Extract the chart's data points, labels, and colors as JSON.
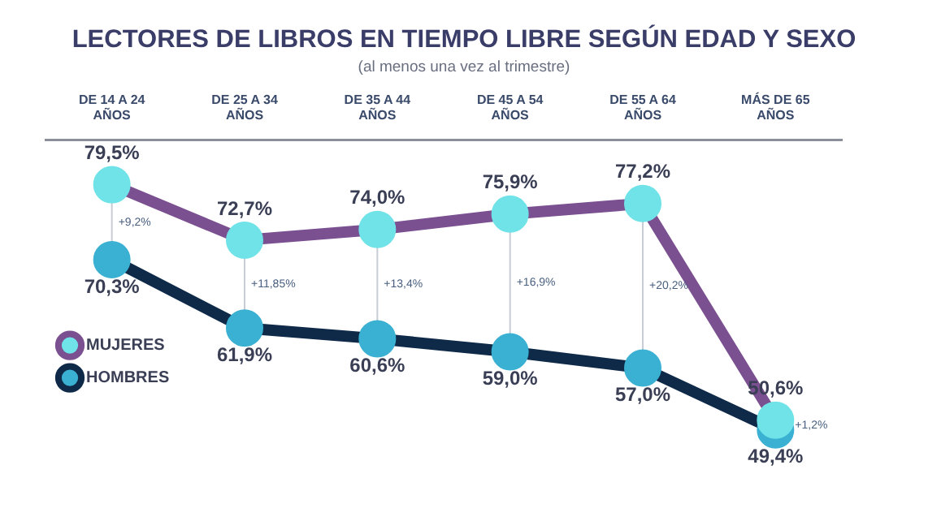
{
  "chart_data": {
    "type": "line",
    "title": "LECTORES DE LIBROS EN TIEMPO LIBRE SEGÚN EDAD Y SEXO",
    "subtitle": "(al menos una vez al trimestre)",
    "categories": [
      "DE 14 A 24 AÑOS",
      "DE 25 A 34 AÑOS",
      "DE 35 A 44 AÑOS",
      "DE 45 A 54 AÑOS",
      "DE 55 A 64 AÑOS",
      "MÁS DE 65 AÑOS"
    ],
    "series": [
      {
        "name": "MUJERES",
        "color": "#7b5091",
        "colors": [
          "#6fe3e8",
          "#6fe3e8",
          "#6fe3e8",
          "#6fe3e8",
          "#6fe3e8",
          "#6fe3e8"
        ],
        "values": [
          79.5,
          72.7,
          74.0,
          75.9,
          77.2,
          50.6
        ],
        "value_labels": [
          "79,5%",
          "72,7%",
          "74,0%",
          "75,9%",
          "77,2%",
          "50,6%"
        ]
      },
      {
        "name": "HOMBRES",
        "color": "#0e2a48",
        "colors": [
          "#3ab0d2",
          "#3ab0d2",
          "#3ab0d2",
          "#3ab0d2",
          "#3ab0d2",
          "#3ab0d2"
        ],
        "values": [
          70.3,
          61.9,
          60.6,
          59.0,
          57.0,
          49.4
        ],
        "value_labels": [
          "70,3%",
          "61,9%",
          "60,6%",
          "59,0%",
          "57,0%",
          "49,4%"
        ]
      }
    ],
    "annotations": [
      "+9,2%",
      "+11,85%",
      "+13,4%",
      "+16,9%",
      "+20,2%",
      "+1,2%"
    ],
    "marker": "circle",
    "line_style": "solid",
    "grid": false,
    "legend": "bottom left",
    "tick_labels": "x"
  }
}
